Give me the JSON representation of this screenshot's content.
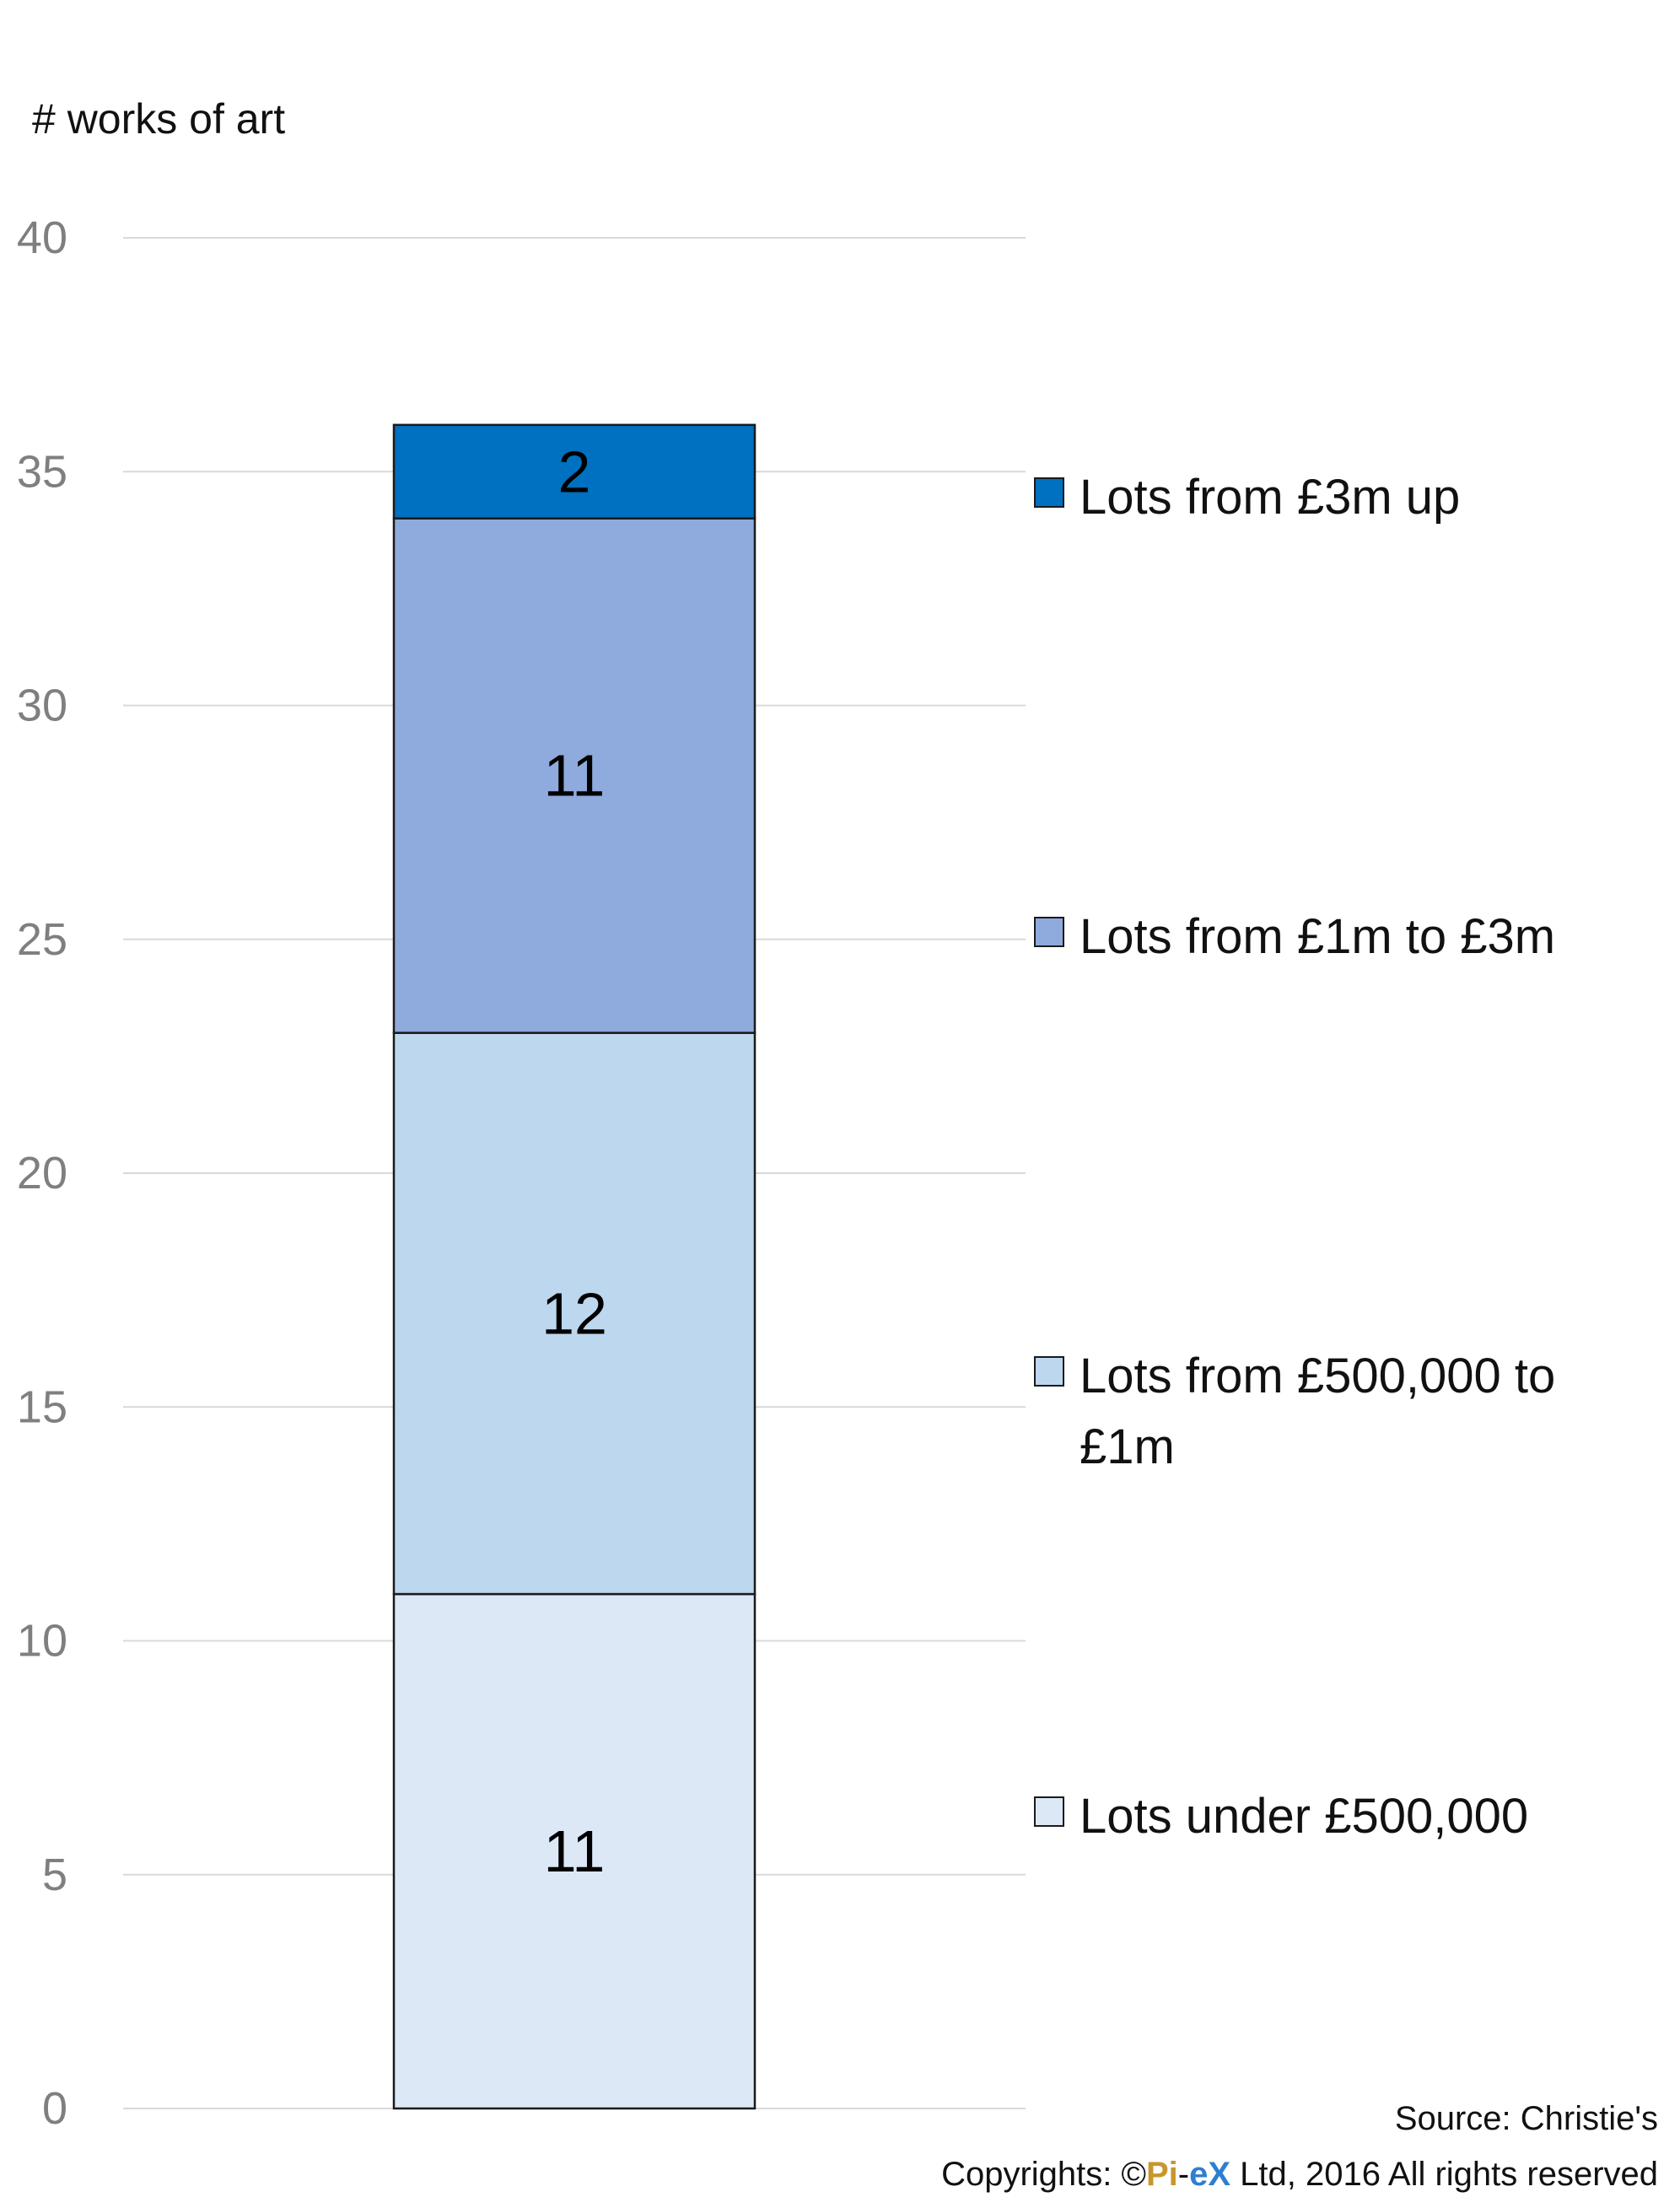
{
  "chart_data": {
    "type": "bar",
    "stacked": true,
    "ylabel": "# works of art",
    "ylim": [
      0,
      40
    ],
    "yticks": [
      0,
      5,
      10,
      15,
      20,
      25,
      30,
      35,
      40
    ],
    "grid": true,
    "legend_position": "right",
    "categories": [
      ""
    ],
    "series": [
      {
        "name": "Lots under £500,000",
        "values": [
          11
        ],
        "color": "#dde8f6",
        "label": "11"
      },
      {
        "name": "Lots from £500,000 to £1m",
        "values": [
          12
        ],
        "color": "#bdd7ee",
        "label": "12"
      },
      {
        "name": "Lots from £1m to £3m",
        "values": [
          11
        ],
        "color": "#8faadc",
        "label": "11"
      },
      {
        "name": "Lots from £3m up",
        "values": [
          2
        ],
        "color": "#0070c0",
        "label": "2"
      }
    ]
  },
  "legend": {
    "items": [
      {
        "label": "Lots from £3m up",
        "color": "#0070c0"
      },
      {
        "label": "Lots from £1m to £3m",
        "color": "#8faadc"
      },
      {
        "label": "Lots from £500,000 to £1m",
        "color": "#bdd7ee"
      },
      {
        "label": "Lots under £500,000",
        "color": "#dde8f6"
      }
    ]
  },
  "footer": {
    "source": "Source: Christie's",
    "copyright_prefix": "Copyrights: ©",
    "brand_pi": "Pi",
    "brand_dash": "-",
    "brand_ex": "eX",
    "copyright_suffix": " Ltd, 2016 All rights reserved"
  }
}
